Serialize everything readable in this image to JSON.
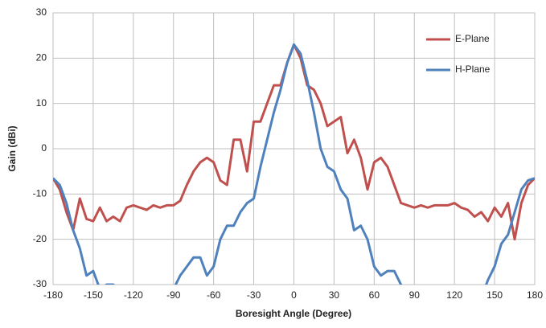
{
  "chart_data": {
    "type": "line",
    "x_label": "Boresight Angle (Degree)",
    "y_label": "Gain (dBi)",
    "x": [
      -180,
      -175,
      -170,
      -165,
      -160,
      -155,
      -150,
      -145,
      -140,
      -135,
      -130,
      -125,
      -120,
      -115,
      -110,
      -105,
      -100,
      -95,
      -90,
      -85,
      -80,
      -75,
      -70,
      -65,
      -60,
      -55,
      -50,
      -45,
      -40,
      -35,
      -30,
      -25,
      -20,
      -15,
      -10,
      -5,
      0,
      5,
      10,
      15,
      20,
      25,
      30,
      35,
      40,
      45,
      50,
      55,
      60,
      65,
      70,
      75,
      80,
      85,
      90,
      95,
      100,
      105,
      110,
      115,
      120,
      125,
      130,
      135,
      140,
      145,
      150,
      155,
      160,
      165,
      170,
      175,
      180
    ],
    "series": [
      {
        "name": "E-Plane",
        "color": "#c0504d",
        "values": [
          -6.5,
          -9,
          -14,
          -18,
          -11,
          -15.5,
          -16,
          -13,
          -16,
          -15,
          -16,
          -13,
          -12.5,
          -13,
          -13.5,
          -12.5,
          -13,
          -12.5,
          -12.5,
          -11.5,
          -8,
          -5,
          -3,
          -2,
          -3,
          -7,
          -8,
          2,
          2,
          -5,
          6,
          6,
          10,
          14,
          14,
          19,
          23,
          20,
          14,
          13,
          10,
          5,
          6,
          7,
          -1,
          2,
          -2,
          -9,
          -3,
          -2,
          -4,
          -8,
          -12,
          -12.5,
          -13,
          -12.5,
          -13,
          -12.5,
          -12.5,
          -12.5,
          -12,
          -13,
          -13.5,
          -15,
          -14,
          -16,
          -13,
          -15,
          -12,
          -20,
          -12,
          -8,
          -6.5
        ]
      },
      {
        "name": "H-Plane",
        "color": "#4f81bd",
        "values": [
          -6.5,
          -8,
          -12,
          -18,
          -22,
          -28,
          -27,
          -31,
          -30,
          -30,
          -32,
          -33,
          -33,
          -33,
          -33,
          -33,
          -33,
          -32,
          -31,
          -28,
          -26,
          -24,
          -24,
          -28,
          -26,
          -20,
          -17,
          -17,
          -14,
          -12,
          -11,
          -4,
          2,
          8,
          13,
          19,
          23,
          21,
          15,
          8,
          0,
          -4,
          -5,
          -9,
          -11,
          -18,
          -17,
          -20,
          -26,
          -28,
          -27,
          -27,
          -30,
          -32,
          -33,
          -33,
          -33,
          -33,
          -33,
          -33,
          -33,
          -33,
          -33,
          -33,
          -33,
          -29,
          -26,
          -21,
          -19,
          -14,
          -9,
          -7,
          -6.5
        ]
      }
    ],
    "xlim": [
      -180,
      180
    ],
    "xticks": [
      -180,
      -150,
      -120,
      -90,
      -60,
      -30,
      0,
      30,
      60,
      90,
      120,
      150,
      180
    ],
    "ylim": [
      -30,
      30
    ],
    "yticks": [
      -30,
      -20,
      -10,
      0,
      10,
      20,
      30
    ],
    "grid": true,
    "legend": "top-right"
  }
}
